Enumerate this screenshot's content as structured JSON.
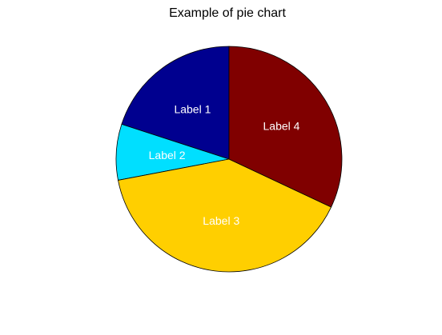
{
  "chart_data": {
    "type": "pie",
    "title": "Example of pie chart",
    "labels": [
      "Label 1",
      "Label 2",
      "Label 3",
      "Label 4"
    ],
    "values": [
      20,
      8,
      40,
      32
    ],
    "colors": [
      "#00008F",
      "#00DFFF",
      "#FFCF00",
      "#800000"
    ],
    "label_colors": [
      "#ffffff",
      "#000000",
      "#000000",
      "#ffffff"
    ],
    "start_angle_deg": 90,
    "direction": "counterclockwise",
    "legend": "none"
  }
}
